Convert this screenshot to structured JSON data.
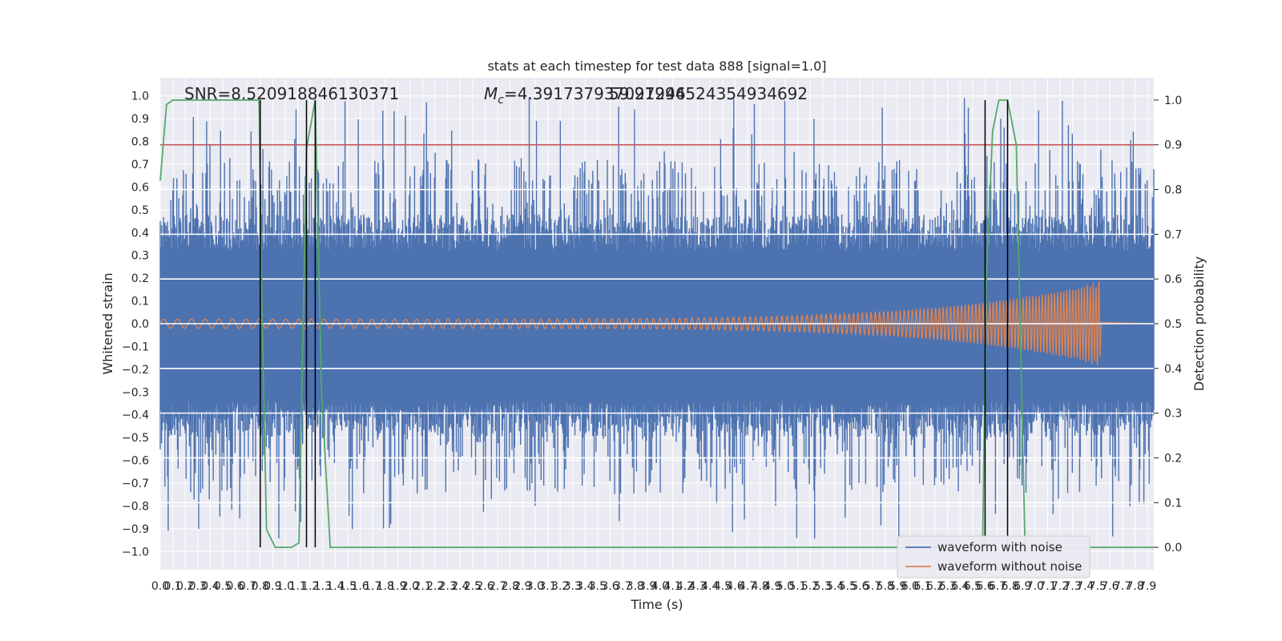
{
  "chart_data": {
    "type": "line",
    "title": "stats at each timestep for test data 888 [signal=1.0]",
    "xlabel": "Time (s)",
    "ylabel": "Whitened strain",
    "ylabel_right": "Detection probability",
    "xlim": [
      0.0,
      7.95
    ],
    "ylim": [
      -1.08,
      1.08
    ],
    "ylim_right": [
      -0.05,
      1.05
    ],
    "x_ticks": [
      "0.0",
      "0.1",
      "0.2",
      "0.3",
      "0.4",
      "0.5",
      "0.6",
      "0.7",
      "0.8",
      "0.9",
      "1.0",
      "1.1",
      "1.2",
      "1.3",
      "1.4",
      "1.5",
      "1.6",
      "1.7",
      "1.8",
      "1.9",
      "2.0",
      "2.1",
      "2.2",
      "2.3",
      "2.4",
      "2.5",
      "2.6",
      "2.7",
      "2.8",
      "2.9",
      "3.0",
      "3.1",
      "3.2",
      "3.3",
      "3.4",
      "3.5",
      "3.6",
      "3.7",
      "3.8",
      "3.9",
      "4.0",
      "4.1",
      "4.2",
      "4.3",
      "4.4",
      "4.5",
      "4.6",
      "4.7",
      "4.8",
      "4.9",
      "5.0",
      "5.1",
      "5.2",
      "5.3",
      "5.4",
      "5.5",
      "5.6",
      "5.7",
      "5.8",
      "5.9",
      "6.0",
      "6.1",
      "6.2",
      "6.3",
      "6.4",
      "6.5",
      "6.6",
      "6.7",
      "6.8",
      "6.9",
      "7.0",
      "7.1",
      "7.2",
      "7.3",
      "7.4",
      "7.5",
      "7.6",
      "7.7",
      "7.8",
      "7.9"
    ],
    "y_ticks": [
      "−1.0",
      "−0.9",
      "−0.8",
      "−0.7",
      "−0.6",
      "−0.5",
      "−0.4",
      "−0.3",
      "−0.2",
      "−0.1",
      "0.0",
      "0.1",
      "0.2",
      "0.3",
      "0.4",
      "0.5",
      "0.6",
      "0.7",
      "0.8",
      "0.9",
      "1.0"
    ],
    "y_ticks_right": [
      "0.0",
      "0.1",
      "0.2",
      "0.3",
      "0.4",
      "0.5",
      "0.6",
      "0.7",
      "0.8",
      "0.9",
      "1.0"
    ],
    "annotations": {
      "snr": "SNR=8.520918846130371",
      "mc_symbol": "M",
      "mc_sub": "c",
      "mc_value": "=4.391737937027246",
      "overlap_value": "59.91994524354934692"
    },
    "threshold": {
      "value": 0.9,
      "axis": "right",
      "color": "#c44e52"
    },
    "vertical_lines": [
      {
        "x": 0.8,
        "from_prob": 0.0,
        "to_prob": 1.0
      },
      {
        "x": 1.17,
        "from_prob": 0.0,
        "to_prob": 1.0
      },
      {
        "x": 1.24,
        "from_prob": 0.0,
        "to_prob": 1.0
      },
      {
        "x": 6.6,
        "from_prob": 0.0,
        "to_prob": 1.0
      },
      {
        "x": 6.78,
        "from_prob": 0.0,
        "to_prob": 1.0
      }
    ],
    "series": [
      {
        "name": "waveform with noise",
        "color": "#4c72b0",
        "axis": "left",
        "envelope": {
          "typical_max": 0.5,
          "peak_max": 1.0,
          "peak_min": -0.95
        }
      },
      {
        "name": "waveform without noise",
        "color": "#dd8452",
        "axis": "left",
        "chirp": {
          "start_amp": 0.02,
          "peak_amp": 0.18,
          "peak_neg": -0.22,
          "merger_time": 7.52,
          "end_time": 7.95
        }
      },
      {
        "name": "",
        "color": "#55a868",
        "axis": "right",
        "x": [
          0.0,
          0.05,
          0.1,
          0.2,
          0.5,
          0.79,
          0.81,
          0.85,
          0.92,
          1.05,
          1.11,
          1.17,
          1.24,
          1.29,
          1.36,
          2.0,
          4.0,
          6.0,
          6.58,
          6.61,
          6.66,
          6.71,
          6.78,
          6.85,
          6.92,
          7.0,
          7.95
        ],
        "values": [
          0.82,
          0.99,
          1.0,
          1.0,
          1.0,
          1.0,
          0.6,
          0.04,
          0.0,
          0.0,
          0.01,
          0.89,
          1.0,
          0.35,
          0.0,
          0.0,
          0.0,
          0.0,
          0.0,
          0.6,
          0.93,
          1.0,
          1.0,
          0.9,
          0.0,
          0.0,
          0.0
        ]
      }
    ]
  }
}
